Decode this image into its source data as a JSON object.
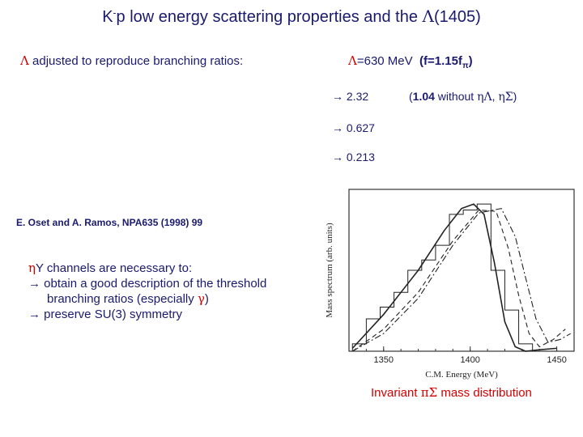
{
  "title": {
    "main": "K",
    "sup": "-",
    "rest": "p low energy scattering properties and the ",
    "lambda": "Λ",
    "tail": "(1405)"
  },
  "lambda_adjusted": {
    "symbol": "Λ",
    "text": " adjusted to reproduce branching ratios:"
  },
  "lambda_value": {
    "symbol": "Λ",
    "value": "=630 MeV",
    "f_paren": "(f=1.15f",
    "f_sub": "π",
    "close": ")"
  },
  "results": [
    {
      "arrow": "→",
      "value": "2.32",
      "note_open": "(",
      "note_bold": "1.04",
      "note_text": " without ",
      "eta1": "η",
      "lam": "Λ",
      "comma": ", ",
      "eta2": "η",
      "sig": "Σ",
      "note_close": ")"
    },
    {
      "arrow": "→",
      "value": "0.627"
    },
    {
      "arrow": "→",
      "value": "0.213"
    }
  ],
  "reference": "E. Oset and A. Ramos, NPA635 (1998) 99",
  "notes": {
    "eta": "η",
    "line1": "Y channels are necessary to:",
    "line2_arrow": "→",
    "line2": " obtain a good description of the threshold",
    "line3a": "branching ratios (especially ",
    "gamma": "γ",
    "line3b": ")",
    "line4_arrow": "→",
    "line4": " preserve SU(3) symmetry"
  },
  "plot": {
    "ylabel": "Mass spectrum (arb. units)",
    "xlabel": "C.M. Energy (MeV)",
    "xticks": [
      "1350",
      "1400",
      "1450"
    ]
  },
  "caption": {
    "pre": "Invariant ",
    "pi": "π",
    "sigma": "Σ",
    "post": " mass distribution"
  },
  "colors": {
    "text": "#1a1a6e",
    "red": "#d40000"
  },
  "chart_data": {
    "type": "line",
    "title": "",
    "xlabel": "C.M. Energy (MeV)",
    "ylabel": "Mass spectrum (arb. units)",
    "xlim": [
      1330,
      1460
    ],
    "ylim": [
      0,
      1.1
    ],
    "histogram": {
      "name": "experimental data",
      "edges": [
        1332,
        1340,
        1348,
        1356,
        1364,
        1372,
        1380,
        1388,
        1396,
        1404,
        1412,
        1420,
        1428,
        1436
      ],
      "values": [
        0.05,
        0.22,
        0.3,
        0.4,
        0.55,
        0.62,
        0.72,
        0.93,
        0.96,
        1.0,
        0.55,
        0.28,
        0.05
      ]
    },
    "series": [
      {
        "name": "solid",
        "x": [
          1332,
          1350,
          1370,
          1385,
          1395,
          1402,
          1408,
          1414,
          1420,
          1426,
          1432,
          1440,
          1450
        ],
        "y": [
          0.02,
          0.25,
          0.55,
          0.82,
          0.97,
          1.0,
          0.93,
          0.6,
          0.2,
          0.03,
          0.0,
          0.01,
          0.02
        ]
      },
      {
        "name": "dashed",
        "x": [
          1332,
          1350,
          1370,
          1390,
          1405,
          1415,
          1422,
          1428,
          1434,
          1440,
          1448,
          1455
        ],
        "y": [
          0.0,
          0.15,
          0.4,
          0.75,
          0.96,
          0.95,
          0.7,
          0.38,
          0.12,
          0.03,
          0.08,
          0.15
        ]
      },
      {
        "name": "dash-dot",
        "x": [
          1332,
          1350,
          1370,
          1390,
          1405,
          1418,
          1426,
          1432,
          1438,
          1445,
          1452,
          1458
        ],
        "y": [
          0.0,
          0.12,
          0.36,
          0.72,
          0.94,
          0.97,
          0.78,
          0.5,
          0.22,
          0.06,
          0.08,
          0.12
        ]
      }
    ]
  }
}
